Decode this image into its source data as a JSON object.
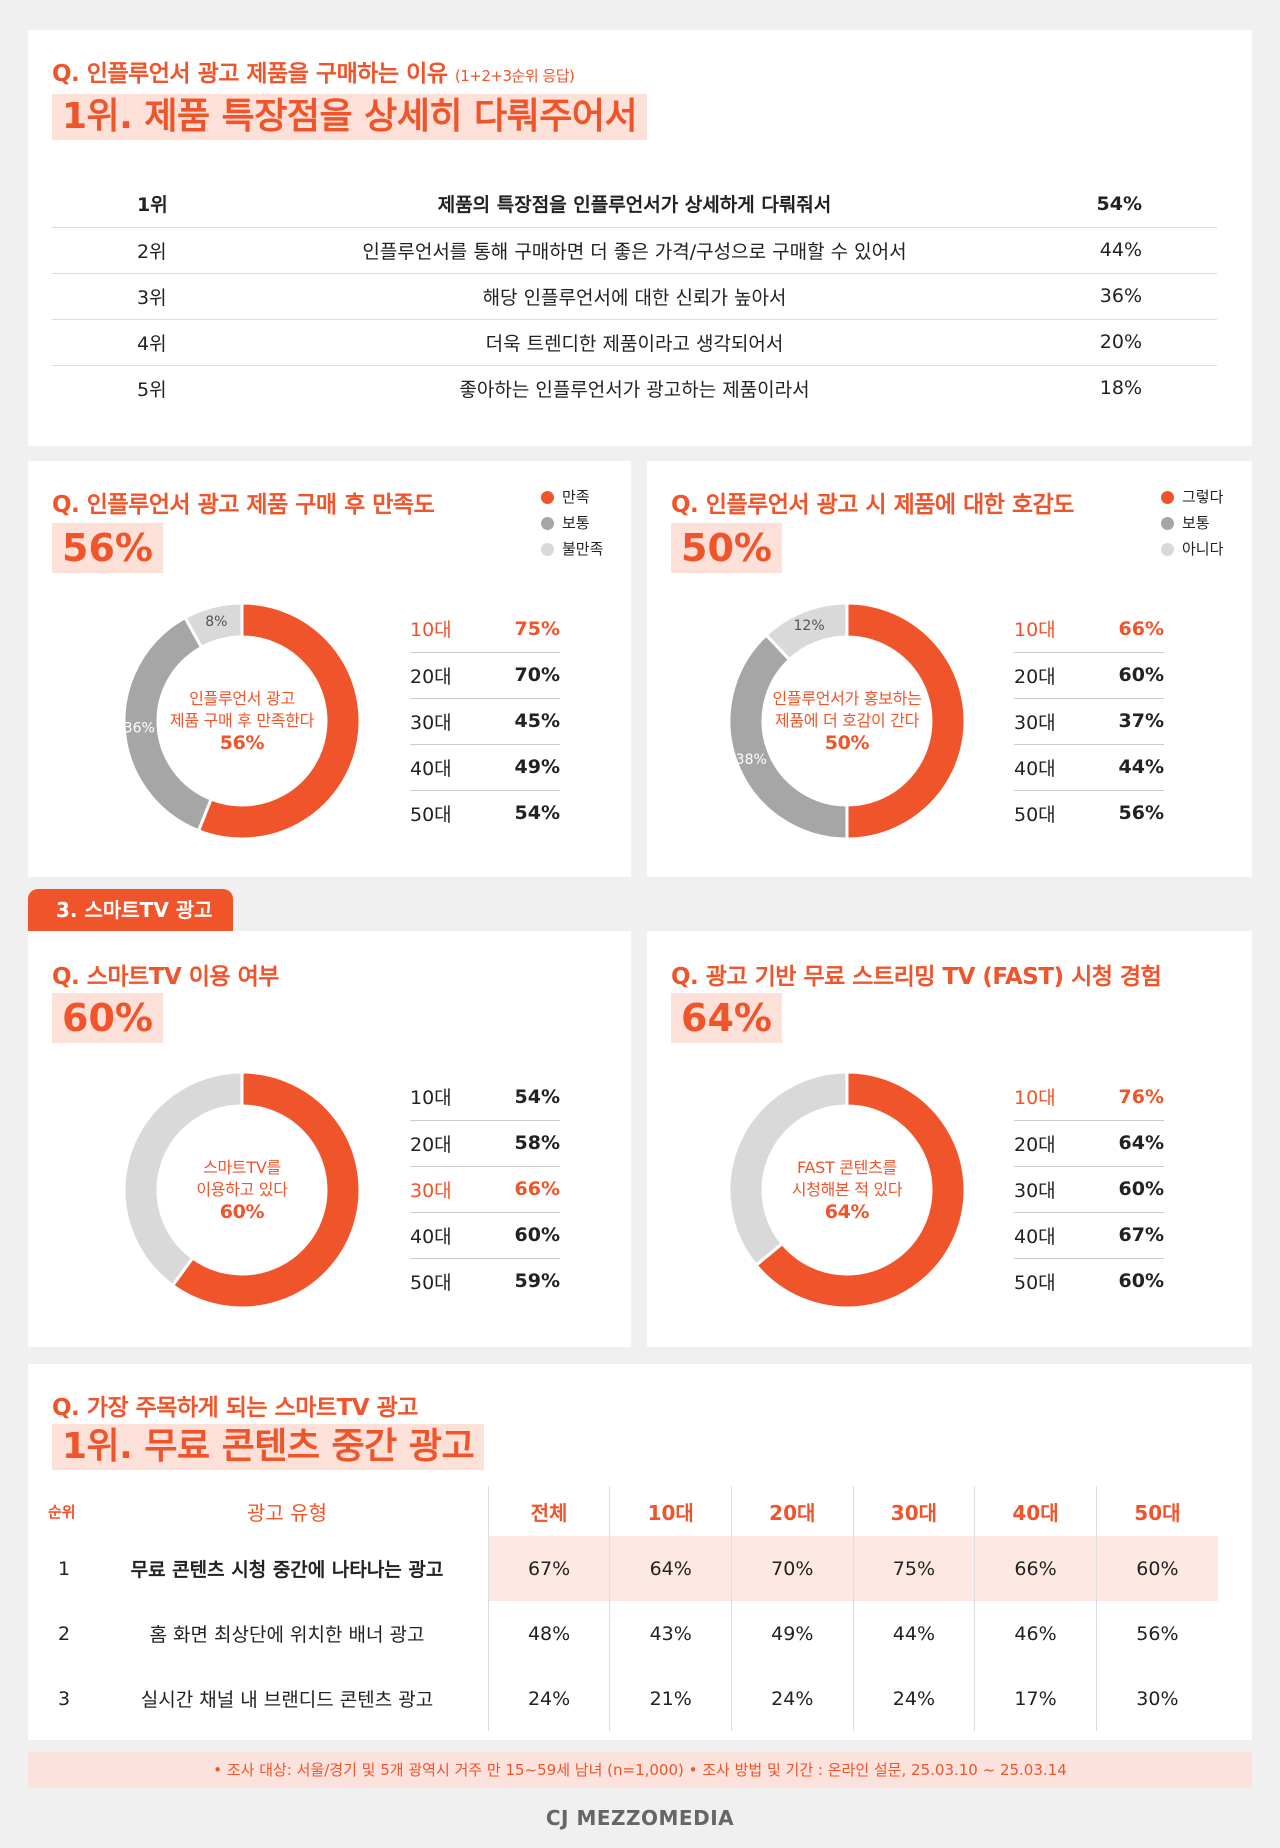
{
  "reason": {
    "question": "Q. 인플루언서 광고 제품을 구매하는 이유",
    "question_note": "(1+2+3순위 응답)",
    "headline": "1위. 제품 특장점을 상세히 다뤄주어서",
    "rows": [
      {
        "rank": "1위",
        "text": "제품의 특장점을 인플루언서가 상세하게 다뤄줘서",
        "pct": "54%"
      },
      {
        "rank": "2위",
        "text": "인플루언서를 통해 구매하면 더 좋은 가격/구성으로 구매할 수 있어서",
        "pct": "44%"
      },
      {
        "rank": "3위",
        "text": "해당 인플루언서에 대한 신뢰가 높아서",
        "pct": "36%"
      },
      {
        "rank": "4위",
        "text": "더욱 트렌디한 제품이라고 생각되어서",
        "pct": "20%"
      },
      {
        "rank": "5위",
        "text": "좋아하는 인플루언서가 광고하는 제품이라서",
        "pct": "18%"
      }
    ]
  },
  "satisfaction": {
    "question": "Q. 인플루언서 광고 제품 구매 후 만족도",
    "big": "56%",
    "legend": [
      "만족",
      "보통",
      "불만족"
    ],
    "center_line1": "인플루언서 광고",
    "center_line2": "제품 구매 후 만족한다",
    "center_pct": "56%",
    "seg_labels": [
      "8%",
      "36%"
    ],
    "ages": [
      "10대",
      "20대",
      "30대",
      "40대",
      "50대"
    ],
    "age_values": [
      "75%",
      "70%",
      "45%",
      "49%",
      "54%"
    ]
  },
  "favor": {
    "question": "Q. 인플루언서 광고 시 제품에 대한 호감도",
    "big": "50%",
    "legend": [
      "그렇다",
      "보통",
      "아니다"
    ],
    "center_line1": "인플루언서가 홍보하는",
    "center_line2": "제품에 더 호감이 간다",
    "center_pct": "50%",
    "seg_labels": [
      "12%",
      "38%"
    ],
    "ages": [
      "10대",
      "20대",
      "30대",
      "40대",
      "50대"
    ],
    "age_values": [
      "66%",
      "60%",
      "37%",
      "44%",
      "56%"
    ]
  },
  "section_tab": "3. 스마트TV 광고",
  "smarttv": {
    "question": "Q. 스마트TV 이용 여부",
    "big": "60%",
    "center_line1": "스마트TV를",
    "center_line2": "이용하고 있다",
    "center_pct": "60%",
    "ages": [
      "10대",
      "20대",
      "30대",
      "40대",
      "50대"
    ],
    "age_values": [
      "54%",
      "58%",
      "66%",
      "60%",
      "59%"
    ]
  },
  "fast": {
    "question": "Q. 광고 기반 무료 스트리밍 TV (FAST) 시청 경험",
    "big": "64%",
    "center_line1": "FAST 콘텐츠를",
    "center_line2": "시청해본 적 있다",
    "center_pct": "64%",
    "ages": [
      "10대",
      "20대",
      "30대",
      "40대",
      "50대"
    ],
    "age_values": [
      "76%",
      "64%",
      "60%",
      "67%",
      "60%"
    ]
  },
  "attention": {
    "question": "Q. 가장 주목하게 되는 스마트TV 광고",
    "headline": "1위. 무료 콘텐츠 중간 광고",
    "head_rank": "순위",
    "head_type": "광고 유형",
    "columns": [
      "전체",
      "10대",
      "20대",
      "30대",
      "40대",
      "50대"
    ],
    "rows": [
      {
        "rank": "1",
        "type": "무료 콘텐츠 시청 중간에 나타나는 광고",
        "values": [
          "67%",
          "64%",
          "70%",
          "75%",
          "66%",
          "60%"
        ]
      },
      {
        "rank": "2",
        "type": "홈 화면 최상단에 위치한 배너 광고",
        "values": [
          "48%",
          "43%",
          "49%",
          "44%",
          "46%",
          "56%"
        ]
      },
      {
        "rank": "3",
        "type": "실시간 채널 내 브랜디드 콘텐츠 광고",
        "values": [
          "24%",
          "21%",
          "24%",
          "24%",
          "17%",
          "30%"
        ]
      }
    ]
  },
  "footer": "• 조사 대상: 서울/경기 및 5개 광역시 거주 만 15~59세 남녀 (n=1,000)   • 조사 방법 및 기간 : 온라인 설문, 25.03.10 ~ 25.03.14",
  "logo": "CJ MEZZOMEDIA",
  "colors": {
    "accent": "#f0542a",
    "mid_gray": "#a6a6a6",
    "light_gray": "#d9d9d9",
    "highlight_bg": "#fde0d8"
  },
  "chart_data": [
    {
      "type": "table",
      "title": "Q. 인플루언서 광고 제품을 구매하는 이유",
      "categories": [
        "1위",
        "2위",
        "3위",
        "4위",
        "5위"
      ],
      "values": [
        54,
        44,
        36,
        20,
        18
      ]
    },
    {
      "type": "pie",
      "title": "Q. 인플루언서 광고 제품 구매 후 만족도",
      "categories": [
        "만족",
        "보통",
        "불만족"
      ],
      "values": [
        56,
        36,
        8
      ],
      "by_age": {
        "categories": [
          "10대",
          "20대",
          "30대",
          "40대",
          "50대"
        ],
        "values": [
          75,
          70,
          45,
          49,
          54
        ]
      }
    },
    {
      "type": "pie",
      "title": "Q. 인플루언서 광고 시 제품에 대한 호감도",
      "categories": [
        "그렇다",
        "보통",
        "아니다"
      ],
      "values": [
        50,
        38,
        12
      ],
      "by_age": {
        "categories": [
          "10대",
          "20대",
          "30대",
          "40대",
          "50대"
        ],
        "values": [
          66,
          60,
          37,
          44,
          56
        ]
      }
    },
    {
      "type": "pie",
      "title": "Q. 스마트TV 이용 여부",
      "values": [
        60,
        40
      ],
      "by_age": {
        "categories": [
          "10대",
          "20대",
          "30대",
          "40대",
          "50대"
        ],
        "values": [
          54,
          58,
          66,
          60,
          59
        ]
      }
    },
    {
      "type": "pie",
      "title": "Q. 광고 기반 무료 스트리밍 TV (FAST) 시청 경험",
      "values": [
        64,
        36
      ],
      "by_age": {
        "categories": [
          "10대",
          "20대",
          "30대",
          "40대",
          "50대"
        ],
        "values": [
          76,
          64,
          60,
          67,
          60
        ]
      }
    },
    {
      "type": "table",
      "title": "Q. 가장 주목하게 되는 스마트TV 광고",
      "categories": [
        "전체",
        "10대",
        "20대",
        "30대",
        "40대",
        "50대"
      ],
      "series": [
        {
          "name": "무료 콘텐츠 시청 중간에 나타나는 광고",
          "values": [
            67,
            64,
            70,
            75,
            66,
            60
          ]
        },
        {
          "name": "홈 화면 최상단에 위치한 배너 광고",
          "values": [
            48,
            43,
            49,
            44,
            46,
            56
          ]
        },
        {
          "name": "실시간 채널 내 브랜디드 콘텐츠 광고",
          "values": [
            24,
            21,
            24,
            24,
            17,
            30
          ]
        }
      ]
    }
  ]
}
